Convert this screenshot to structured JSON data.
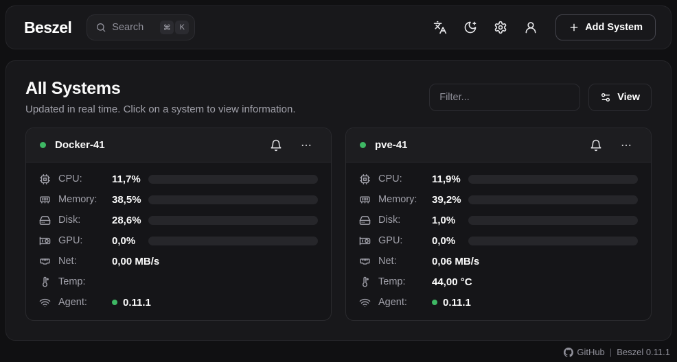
{
  "colors": {
    "green": "#3eb864",
    "page_bg": "#101012",
    "surface": "#18181b",
    "border": "#26262a",
    "card_bg": "#151518",
    "card_header": "#1d1d20",
    "card_border": "#2a2a2e",
    "track": "#26262a",
    "text": "#fafafa",
    "muted": "#a1a1aa",
    "faint": "#90909a"
  },
  "topbar": {
    "logo": "Beszel",
    "search": {
      "placeholder": "Search",
      "kbd_meta": "⌘",
      "kbd_key": "K"
    },
    "icons": [
      "languages-icon",
      "moon-star-icon",
      "gear-icon",
      "user-icon"
    ],
    "add_system_label": "Add System"
  },
  "panel": {
    "title": "All Systems",
    "subtitle": "Updated in real time. Click on a system to view information.",
    "filter_placeholder": "Filter...",
    "view_label": "View"
  },
  "systems": [
    {
      "name": "Docker-41",
      "status": "up",
      "rows": [
        {
          "icon": "cpu-icon",
          "label": "CPU:",
          "value": "11,7%",
          "bar": 11.7
        },
        {
          "icon": "memory-icon",
          "label": "Memory:",
          "value": "38,5%",
          "bar": 38.5
        },
        {
          "icon": "hard-drive-icon",
          "label": "Disk:",
          "value": "28,6%",
          "bar": 28.6
        },
        {
          "icon": "gpu-icon",
          "label": "GPU:",
          "value": "0,0%",
          "bar": 0
        },
        {
          "icon": "ethernet-icon",
          "label": "Net:",
          "value": "0,00 MB/s"
        },
        {
          "icon": "thermometer-icon",
          "label": "Temp:",
          "value": ""
        },
        {
          "icon": "wifi-icon",
          "label": "Agent:",
          "value": "0.11.1"
        }
      ]
    },
    {
      "name": "pve-41",
      "status": "up",
      "rows": [
        {
          "icon": "cpu-icon",
          "label": "CPU:",
          "value": "11,9%",
          "bar": 11.9
        },
        {
          "icon": "memory-icon",
          "label": "Memory:",
          "value": "39,2%",
          "bar": 39.2
        },
        {
          "icon": "hard-drive-icon",
          "label": "Disk:",
          "value": "1,0%",
          "bar": 1.0
        },
        {
          "icon": "gpu-icon",
          "label": "GPU:",
          "value": "0,0%",
          "bar": 0
        },
        {
          "icon": "ethernet-icon",
          "label": "Net:",
          "value": "0,06 MB/s"
        },
        {
          "icon": "thermometer-icon",
          "label": "Temp:",
          "value": "44,00 °C"
        },
        {
          "icon": "wifi-icon",
          "label": "Agent:",
          "value": "0.11.1"
        }
      ]
    }
  ],
  "footer": {
    "github_label": "GitHub",
    "separator": "|",
    "version": "Beszel 0.11.1"
  }
}
